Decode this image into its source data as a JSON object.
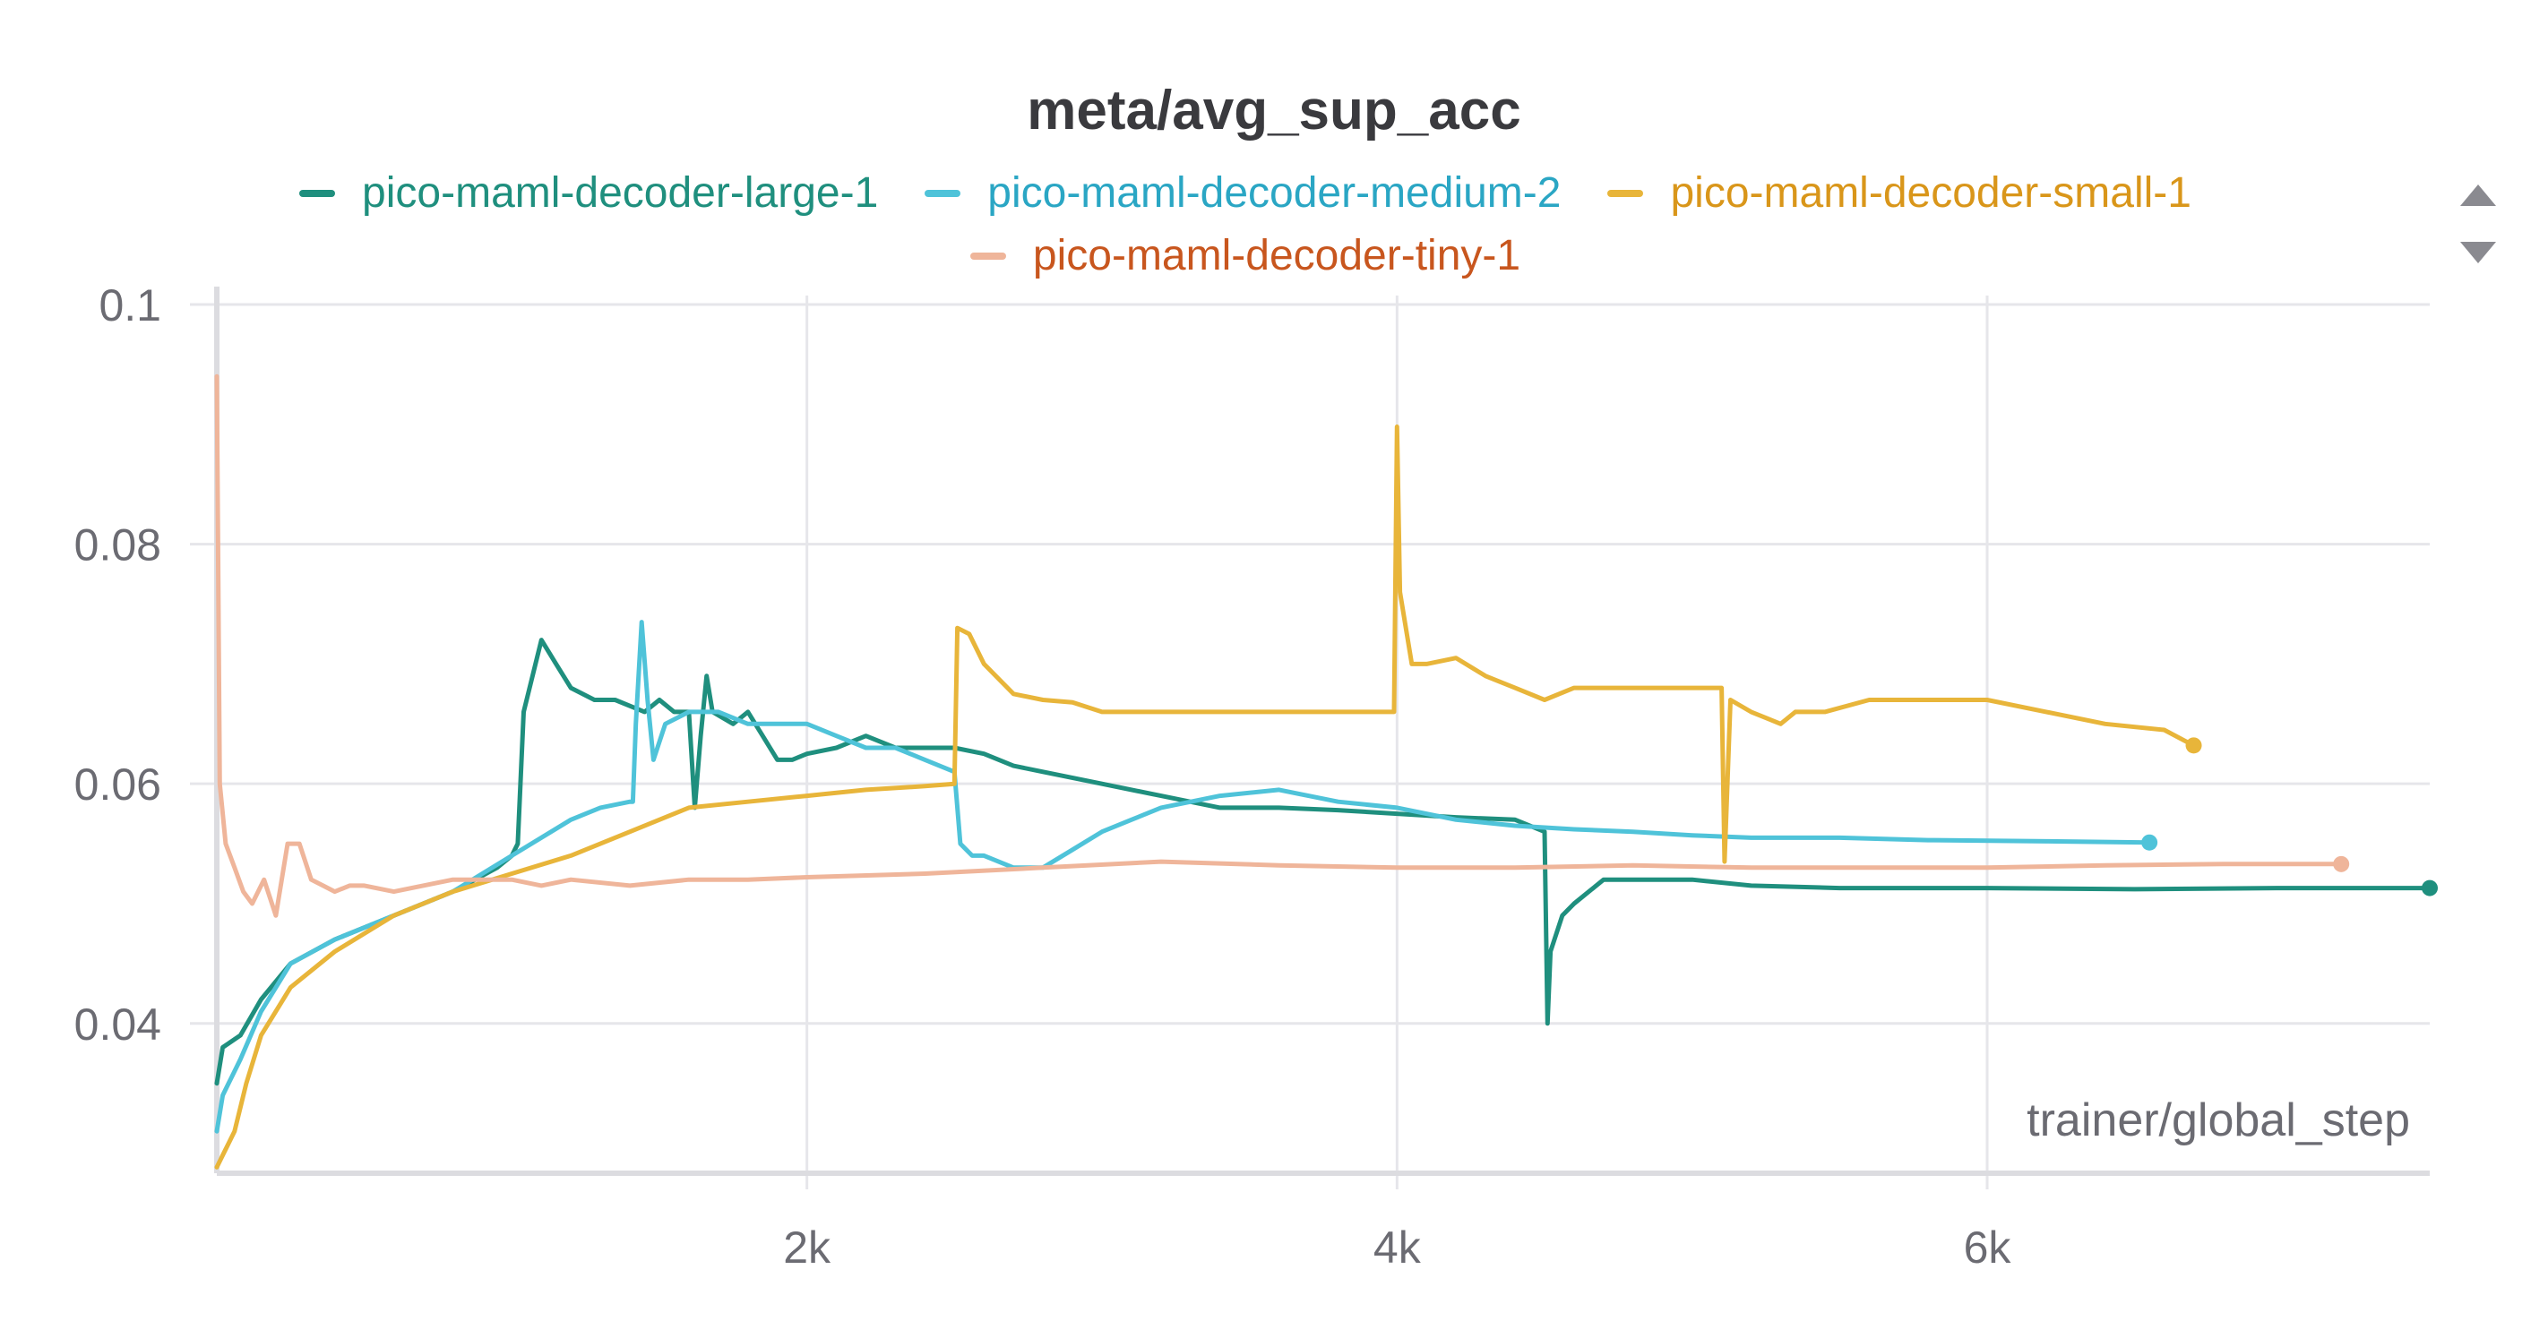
{
  "chart_data": {
    "type": "line",
    "title": "meta/avg_sup_acc",
    "xlabel": "trainer/global_step",
    "ylabel": "",
    "xlim": [
      0,
      7500
    ],
    "ylim": [
      0.0275,
      0.1
    ],
    "x_ticks": [
      {
        "value": 2000,
        "label": "2k"
      },
      {
        "value": 4000,
        "label": "4k"
      },
      {
        "value": 6000,
        "label": "6k"
      }
    ],
    "y_ticks": [
      {
        "value": 0.04,
        "label": "0.04"
      },
      {
        "value": 0.06,
        "label": "0.06"
      },
      {
        "value": 0.08,
        "label": "0.08"
      },
      {
        "value": 0.1,
        "label": "0.1"
      }
    ],
    "grid": true,
    "legend_position": "top",
    "series": [
      {
        "name": "pico-maml-decoder-large-1",
        "color": "#1f8f7e",
        "points": [
          [
            0,
            0.035
          ],
          [
            20,
            0.038
          ],
          [
            80,
            0.039
          ],
          [
            150,
            0.042
          ],
          [
            250,
            0.045
          ],
          [
            400,
            0.047
          ],
          [
            600,
            0.049
          ],
          [
            800,
            0.051
          ],
          [
            950,
            0.053
          ],
          [
            1000,
            0.054
          ],
          [
            1020,
            0.055
          ],
          [
            1040,
            0.066
          ],
          [
            1080,
            0.07
          ],
          [
            1100,
            0.072
          ],
          [
            1150,
            0.07
          ],
          [
            1200,
            0.068
          ],
          [
            1280,
            0.067
          ],
          [
            1350,
            0.067
          ],
          [
            1450,
            0.066
          ],
          [
            1500,
            0.067
          ],
          [
            1550,
            0.066
          ],
          [
            1600,
            0.066
          ],
          [
            1620,
            0.058
          ],
          [
            1640,
            0.064
          ],
          [
            1660,
            0.069
          ],
          [
            1680,
            0.066
          ],
          [
            1750,
            0.065
          ],
          [
            1800,
            0.066
          ],
          [
            1850,
            0.064
          ],
          [
            1900,
            0.062
          ],
          [
            1950,
            0.062
          ],
          [
            2000,
            0.0625
          ],
          [
            2100,
            0.063
          ],
          [
            2200,
            0.064
          ],
          [
            2300,
            0.063
          ],
          [
            2400,
            0.063
          ],
          [
            2500,
            0.063
          ],
          [
            2600,
            0.0625
          ],
          [
            2700,
            0.0615
          ],
          [
            2800,
            0.061
          ],
          [
            3000,
            0.06
          ],
          [
            3200,
            0.059
          ],
          [
            3400,
            0.058
          ],
          [
            3600,
            0.058
          ],
          [
            3800,
            0.0578
          ],
          [
            4000,
            0.0575
          ],
          [
            4200,
            0.0572
          ],
          [
            4400,
            0.057
          ],
          [
            4500,
            0.056
          ],
          [
            4510,
            0.04
          ],
          [
            4520,
            0.046
          ],
          [
            4560,
            0.049
          ],
          [
            4600,
            0.05
          ],
          [
            4650,
            0.051
          ],
          [
            4700,
            0.052
          ],
          [
            4800,
            0.052
          ],
          [
            4900,
            0.052
          ],
          [
            5000,
            0.052
          ],
          [
            5200,
            0.0515
          ],
          [
            5500,
            0.0513
          ],
          [
            6000,
            0.0513
          ],
          [
            6500,
            0.0512
          ],
          [
            7000,
            0.0513
          ],
          [
            7500,
            0.0513
          ]
        ]
      },
      {
        "name": "pico-maml-decoder-medium-2",
        "color": "#4fc3d9",
        "points": [
          [
            0,
            0.031
          ],
          [
            20,
            0.034
          ],
          [
            80,
            0.037
          ],
          [
            150,
            0.041
          ],
          [
            250,
            0.045
          ],
          [
            400,
            0.047
          ],
          [
            600,
            0.049
          ],
          [
            800,
            0.051
          ],
          [
            1000,
            0.054
          ],
          [
            1200,
            0.057
          ],
          [
            1300,
            0.058
          ],
          [
            1400,
            0.0585
          ],
          [
            1410,
            0.0585
          ],
          [
            1420,
            0.065
          ],
          [
            1440,
            0.0735
          ],
          [
            1460,
            0.067
          ],
          [
            1480,
            0.062
          ],
          [
            1520,
            0.065
          ],
          [
            1600,
            0.066
          ],
          [
            1700,
            0.066
          ],
          [
            1800,
            0.065
          ],
          [
            1900,
            0.065
          ],
          [
            2000,
            0.065
          ],
          [
            2100,
            0.064
          ],
          [
            2200,
            0.063
          ],
          [
            2300,
            0.063
          ],
          [
            2400,
            0.062
          ],
          [
            2500,
            0.061
          ],
          [
            2520,
            0.055
          ],
          [
            2560,
            0.054
          ],
          [
            2600,
            0.054
          ],
          [
            2700,
            0.053
          ],
          [
            2800,
            0.053
          ],
          [
            2900,
            0.0545
          ],
          [
            3000,
            0.056
          ],
          [
            3100,
            0.057
          ],
          [
            3200,
            0.058
          ],
          [
            3400,
            0.059
          ],
          [
            3600,
            0.0595
          ],
          [
            3700,
            0.059
          ],
          [
            3800,
            0.0585
          ],
          [
            4000,
            0.058
          ],
          [
            4200,
            0.057
          ],
          [
            4400,
            0.0565
          ],
          [
            4600,
            0.0562
          ],
          [
            4800,
            0.056
          ],
          [
            5000,
            0.0557
          ],
          [
            5200,
            0.0555
          ],
          [
            5500,
            0.0555
          ],
          [
            5800,
            0.0553
          ],
          [
            6200,
            0.0552
          ],
          [
            6550,
            0.0551
          ]
        ]
      },
      {
        "name": "pico-maml-decoder-small-1",
        "color": "#e8b53a",
        "points": [
          [
            0,
            0.028
          ],
          [
            20,
            0.029
          ],
          [
            60,
            0.031
          ],
          [
            100,
            0.035
          ],
          [
            150,
            0.039
          ],
          [
            250,
            0.043
          ],
          [
            400,
            0.046
          ],
          [
            600,
            0.049
          ],
          [
            800,
            0.051
          ],
          [
            1000,
            0.0525
          ],
          [
            1200,
            0.054
          ],
          [
            1300,
            0.055
          ],
          [
            1400,
            0.056
          ],
          [
            1600,
            0.058
          ],
          [
            1800,
            0.0585
          ],
          [
            2000,
            0.059
          ],
          [
            2200,
            0.0595
          ],
          [
            2400,
            0.0598
          ],
          [
            2500,
            0.06
          ],
          [
            2510,
            0.073
          ],
          [
            2550,
            0.0725
          ],
          [
            2600,
            0.07
          ],
          [
            2700,
            0.0675
          ],
          [
            2800,
            0.067
          ],
          [
            2900,
            0.0668
          ],
          [
            3000,
            0.066
          ],
          [
            3200,
            0.066
          ],
          [
            3400,
            0.066
          ],
          [
            3600,
            0.066
          ],
          [
            3800,
            0.066
          ],
          [
            3990,
            0.066
          ],
          [
            4000,
            0.0898
          ],
          [
            4010,
            0.076
          ],
          [
            4050,
            0.07
          ],
          [
            4100,
            0.07
          ],
          [
            4200,
            0.0705
          ],
          [
            4300,
            0.069
          ],
          [
            4400,
            0.068
          ],
          [
            4500,
            0.067
          ],
          [
            4600,
            0.068
          ],
          [
            4800,
            0.068
          ],
          [
            5000,
            0.068
          ],
          [
            5100,
            0.068
          ],
          [
            5110,
            0.0535
          ],
          [
            5130,
            0.067
          ],
          [
            5200,
            0.066
          ],
          [
            5250,
            0.0655
          ],
          [
            5300,
            0.065
          ],
          [
            5350,
            0.066
          ],
          [
            5450,
            0.066
          ],
          [
            5600,
            0.067
          ],
          [
            5800,
            0.067
          ],
          [
            6000,
            0.067
          ],
          [
            6200,
            0.066
          ],
          [
            6400,
            0.065
          ],
          [
            6600,
            0.0645
          ],
          [
            6700,
            0.0632
          ]
        ]
      },
      {
        "name": "pico-maml-decoder-tiny-1",
        "color": "#efb59a",
        "points": [
          [
            0,
            0.094
          ],
          [
            10,
            0.06
          ],
          [
            30,
            0.055
          ],
          [
            60,
            0.053
          ],
          [
            90,
            0.051
          ],
          [
            120,
            0.05
          ],
          [
            160,
            0.052
          ],
          [
            200,
            0.049
          ],
          [
            240,
            0.055
          ],
          [
            280,
            0.055
          ],
          [
            320,
            0.052
          ],
          [
            360,
            0.0515
          ],
          [
            400,
            0.051
          ],
          [
            450,
            0.0515
          ],
          [
            500,
            0.0515
          ],
          [
            600,
            0.051
          ],
          [
            800,
            0.052
          ],
          [
            1000,
            0.052
          ],
          [
            1100,
            0.0515
          ],
          [
            1200,
            0.052
          ],
          [
            1400,
            0.0515
          ],
          [
            1600,
            0.052
          ],
          [
            1800,
            0.052
          ],
          [
            2000,
            0.0522
          ],
          [
            2400,
            0.0525
          ],
          [
            2800,
            0.053
          ],
          [
            3200,
            0.0535
          ],
          [
            3600,
            0.0532
          ],
          [
            4000,
            0.053
          ],
          [
            4400,
            0.053
          ],
          [
            4800,
            0.0532
          ],
          [
            5200,
            0.053
          ],
          [
            5600,
            0.053
          ],
          [
            6000,
            0.053
          ],
          [
            6400,
            0.0532
          ],
          [
            6800,
            0.0533
          ],
          [
            7200,
            0.0533
          ]
        ]
      }
    ]
  },
  "legend": {
    "rows": [
      [
        {
          "label": "pico-maml-decoder-large-1",
          "color": "#1f8f7e",
          "text_color": "#1f8f7e"
        },
        {
          "label": "pico-maml-decoder-medium-2",
          "color": "#4fc3d9",
          "text_color": "#2aa6c4"
        },
        {
          "label": "pico-maml-decoder-small-1",
          "color": "#e8b53a",
          "text_color": "#d9961a"
        }
      ],
      [
        {
          "label": "pico-maml-decoder-tiny-1",
          "color": "#efb59a",
          "text_color": "#c8561e"
        }
      ]
    ]
  }
}
